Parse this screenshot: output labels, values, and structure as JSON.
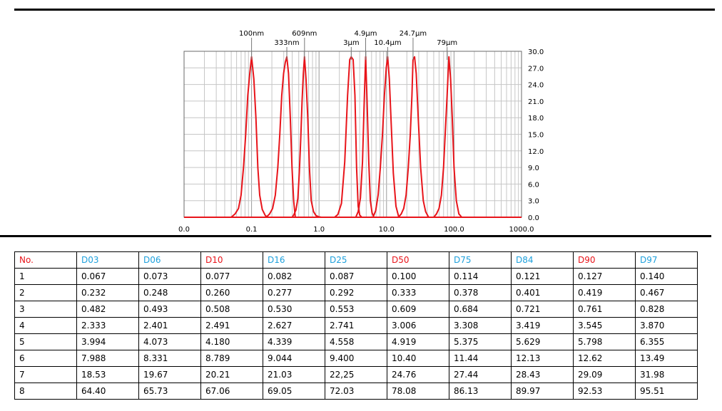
{
  "chart_data": {
    "type": "line",
    "x_scale": "log",
    "xlim": [
      0.01,
      1000.0
    ],
    "ylim": [
      0,
      30
    ],
    "grid": true,
    "series_color": "#e8141a",
    "x_tick_labels": [
      "0.0",
      "0.1",
      "1.0",
      "10.0",
      "100.0",
      "1000.0"
    ],
    "y_tick_labels": [
      "0.0",
      "3.0",
      "6.0",
      "9.0",
      "12.0",
      "15.0",
      "18.0",
      "21.0",
      "24.0",
      "27.0",
      "30.0"
    ],
    "peak_labels": [
      {
        "text": "100nm",
        "x": 0.1
      },
      {
        "text": "333nm",
        "x": 0.333
      },
      {
        "text": "609nm",
        "x": 0.609
      },
      {
        "text": "3μm",
        "x": 3.0
      },
      {
        "text": "4.9μm",
        "x": 4.9
      },
      {
        "text": "10.4μm",
        "x": 10.4
      },
      {
        "text": "24.7μm",
        "x": 24.7
      },
      {
        "text": "79μm",
        "x": 79.0
      }
    ],
    "series": [
      {
        "x": [
          0.05,
          0.057,
          0.064,
          0.07,
          0.076,
          0.082,
          0.088,
          0.094,
          0.1,
          0.108,
          0.116,
          0.124,
          0.132,
          0.144,
          0.16,
          0.175
        ],
        "y": [
          0,
          0.6,
          1.6,
          4,
          9,
          15,
          22,
          26,
          29,
          25,
          18,
          9,
          4,
          1.4,
          0.3,
          0
        ]
      },
      {
        "x": [
          0.165,
          0.185,
          0.205,
          0.225,
          0.245,
          0.262,
          0.28,
          0.298,
          0.316,
          0.333,
          0.353,
          0.375,
          0.398,
          0.42,
          0.445
        ],
        "y": [
          0,
          0.6,
          1.6,
          4,
          9,
          15,
          22,
          26,
          28,
          29,
          26,
          18,
          9,
          3,
          0
        ]
      },
      {
        "x": [
          0.4,
          0.425,
          0.455,
          0.485,
          0.51,
          0.535,
          0.56,
          0.585,
          0.609,
          0.64,
          0.68,
          0.72,
          0.765,
          0.83,
          0.9,
          0.98,
          1.08
        ],
        "y": [
          0,
          0.5,
          1.3,
          3.4,
          8,
          14,
          21,
          26,
          29,
          25,
          18,
          9,
          3,
          1,
          0.3,
          0.1,
          0
        ]
      },
      {
        "x": [
          1.7,
          1.9,
          2.15,
          2.4,
          2.65,
          2.85,
          3.0,
          3.2,
          3.4,
          3.6,
          3.8,
          4.0,
          4.3
        ],
        "y": [
          0,
          0.5,
          2.5,
          10,
          22,
          28.5,
          29,
          28.5,
          22,
          9,
          2,
          0.4,
          0
        ]
      },
      {
        "x": [
          3.5,
          3.8,
          4.1,
          4.4,
          4.65,
          4.9,
          5.15,
          5.45,
          5.75,
          6.1,
          6.5
        ],
        "y": [
          0,
          1,
          3.5,
          10,
          20,
          29,
          21,
          10,
          3,
          0.8,
          0
        ]
      },
      {
        "x": [
          6.3,
          6.9,
          7.5,
          8.1,
          8.7,
          9.3,
          9.9,
          10.4,
          11.0,
          11.7,
          12.6,
          13.8,
          15.2
        ],
        "y": [
          0,
          1.2,
          4,
          9,
          15,
          22,
          27,
          29,
          25,
          17,
          8,
          2,
          0
        ]
      },
      {
        "x": [
          15.0,
          16.5,
          18.0,
          19.5,
          21.0,
          22.5,
          23.8,
          24.7,
          26.0,
          27.5,
          29.5,
          32.0,
          35.0,
          38.0,
          42.0
        ],
        "y": [
          0,
          0.6,
          1.6,
          4,
          9,
          15,
          22,
          28.5,
          29,
          26,
          18,
          9,
          3,
          1,
          0
        ]
      },
      {
        "x": [
          50.0,
          55.0,
          60.0,
          65.0,
          70.0,
          74.0,
          79.0,
          84.0,
          89.0,
          94.0,
          100.0,
          108.0,
          118.0,
          130.0
        ],
        "y": [
          0,
          0.6,
          1.6,
          4,
          9,
          15,
          22,
          29,
          25,
          18,
          9,
          3,
          0.6,
          0
        ]
      }
    ]
  },
  "table": {
    "headers": [
      {
        "text": "No.",
        "color": "#e8141a"
      },
      {
        "text": "D03",
        "color": "#1ea0dc"
      },
      {
        "text": "D06",
        "color": "#1ea0dc"
      },
      {
        "text": "D10",
        "color": "#e8141a"
      },
      {
        "text": "D16",
        "color": "#1ea0dc"
      },
      {
        "text": "D25",
        "color": "#1ea0dc"
      },
      {
        "text": "D50",
        "color": "#e8141a"
      },
      {
        "text": "D75",
        "color": "#1ea0dc"
      },
      {
        "text": "D84",
        "color": "#1ea0dc"
      },
      {
        "text": "D90",
        "color": "#e8141a"
      },
      {
        "text": "D97",
        "color": "#1ea0dc"
      }
    ],
    "rows": [
      [
        "1",
        "0.067",
        "0.073",
        "0.077",
        "0.082",
        "0.087",
        "0.100",
        "0.114",
        "0.121",
        "0.127",
        "0.140"
      ],
      [
        "2",
        "0.232",
        "0.248",
        "0.260",
        "0.277",
        "0.292",
        "0.333",
        "0.378",
        "0.401",
        "0.419",
        "0.467"
      ],
      [
        "3",
        "0.482",
        "0.493",
        "0.508",
        "0.530",
        "0.553",
        "0.609",
        "0.684",
        "0.721",
        "0.761",
        "0.828"
      ],
      [
        "4",
        "2.333",
        "2.401",
        "2.491",
        "2.627",
        "2.741",
        "3.006",
        "3.308",
        "3.419",
        "3.545",
        "3.870"
      ],
      [
        "5",
        "3.994",
        "4.073",
        "4.180",
        "4.339",
        "4.558",
        "4.919",
        "5.375",
        "5.629",
        "5.798",
        "6.355"
      ],
      [
        "6",
        "7.988",
        "8.331",
        "8.789",
        "9.044",
        "9.400",
        "10.40",
        "11.44",
        "12.13",
        "12.62",
        "13.49"
      ],
      [
        "7",
        "18.53",
        "19.67",
        "20.21",
        "21.03",
        "22,25",
        "24.76",
        "27.44",
        "28.43",
        "29.09",
        "31.98"
      ],
      [
        "8",
        "64.40",
        "65.73",
        "67.06",
        "69.05",
        "72.03",
        "78.08",
        "86.13",
        "89.97",
        "92.53",
        "95.51"
      ]
    ]
  }
}
